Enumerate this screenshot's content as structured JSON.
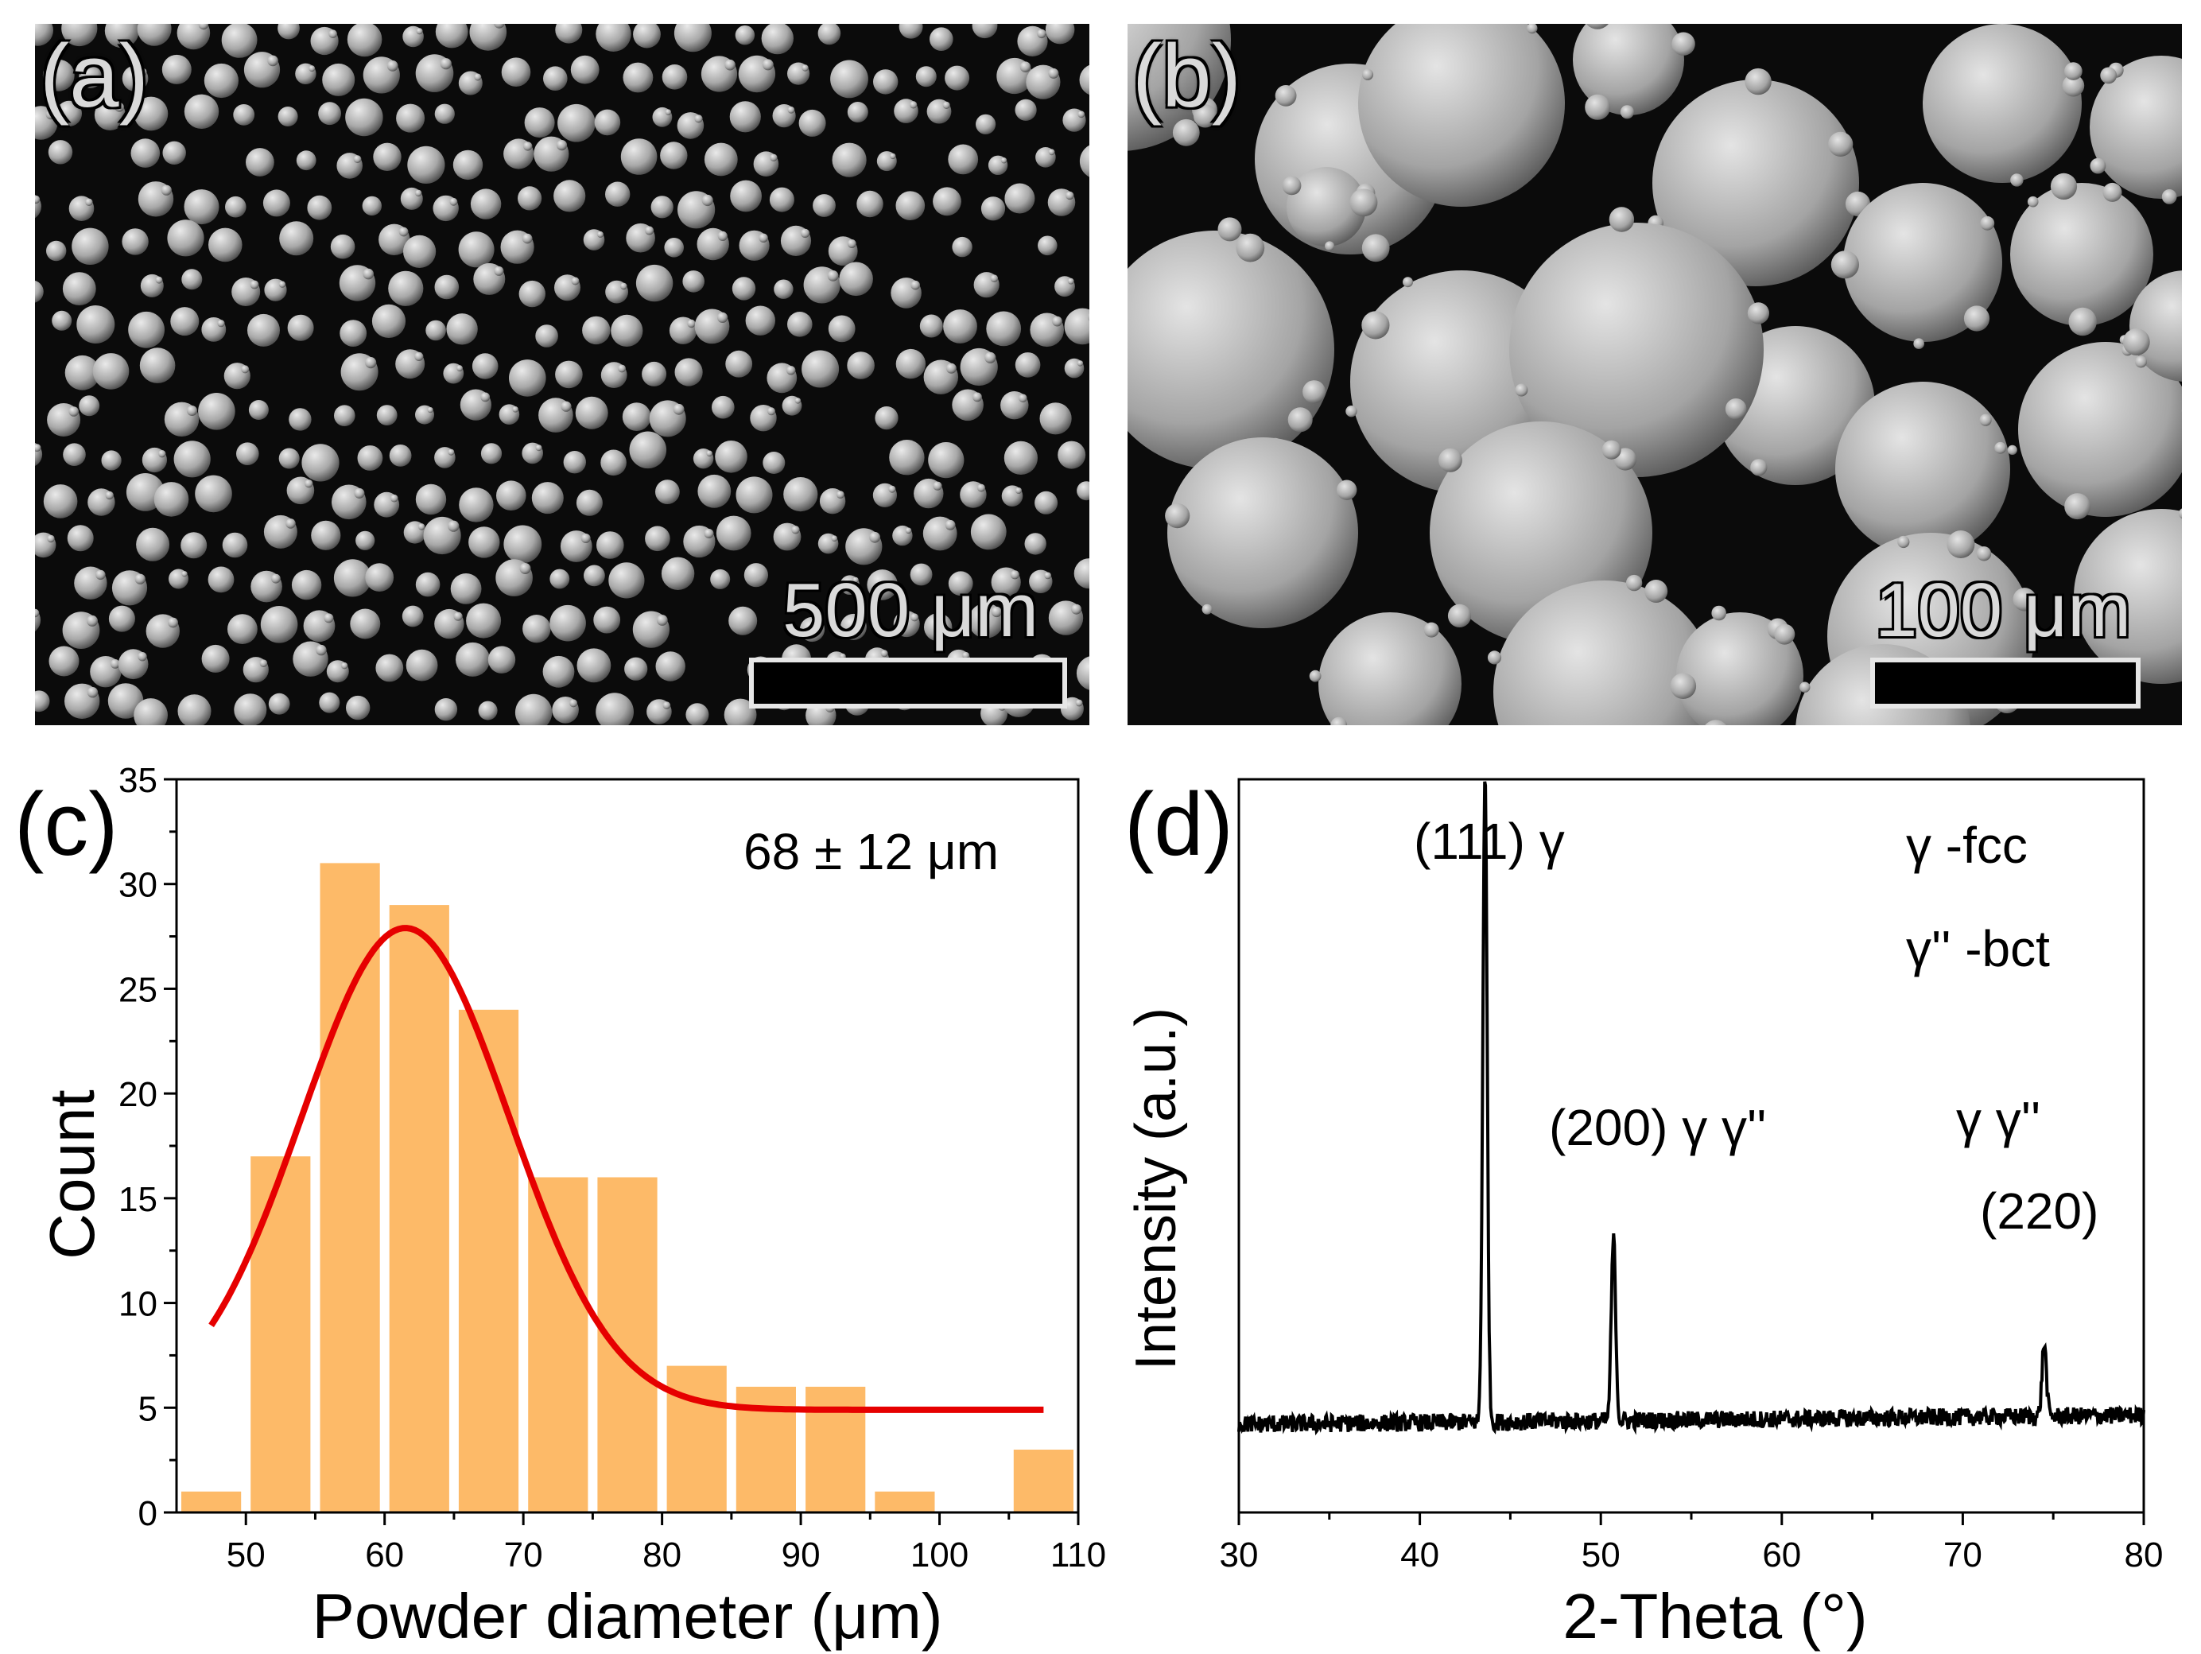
{
  "figure": {
    "panel_a": {
      "label": "(a)",
      "scale_bar": "500 μm"
    },
    "panel_b": {
      "label": "(b)",
      "scale_bar": "100 μm"
    },
    "panel_c": {
      "label": "(c)",
      "annotation": "68 ± 12 μm"
    },
    "panel_d": {
      "label": "(d)",
      "legend": [
        "γ -fcc",
        "γ'' -bct"
      ],
      "peak_labels": [
        "(111) γ",
        "(200) γ γ''",
        "γ γ''",
        "(220)"
      ]
    }
  },
  "chart_data": [
    {
      "type": "bar",
      "panel": "(c)",
      "xlabel": "Powder diameter (μm)",
      "ylabel": "Count",
      "xlim": [
        45,
        110
      ],
      "ylim": [
        0,
        35
      ],
      "xticks": [
        50,
        60,
        70,
        80,
        90,
        100,
        110
      ],
      "yticks": [
        0,
        5,
        10,
        15,
        20,
        25,
        30,
        35
      ],
      "bin_width": 5,
      "bin_centers": [
        47.5,
        52.5,
        57.5,
        62.5,
        67.5,
        72.5,
        77.5,
        82.5,
        87.5,
        92.5,
        97.5,
        102.5,
        107.5
      ],
      "values": [
        1,
        17,
        31,
        29,
        24,
        16,
        16,
        7,
        6,
        6,
        1,
        0,
        3
      ],
      "bar_color": "#fdba68",
      "fit": {
        "type": "gaussian",
        "color": "#e60000",
        "y0": 4.9,
        "amplitude": 23,
        "center": 61.5,
        "sigma": 7.5,
        "x_range": [
          47.5,
          107.5
        ]
      },
      "grid": false
    },
    {
      "type": "line",
      "panel": "(d)",
      "xlabel": "2-Theta (°)",
      "ylabel": "Intensity (a.u.)",
      "xlim": [
        30,
        80
      ],
      "ylim": [
        0,
        100
      ],
      "xticks": [
        30,
        40,
        50,
        60,
        70,
        80
      ],
      "baseline": 12,
      "peaks": [
        {
          "x": 43.6,
          "height": 100
        },
        {
          "x": 50.7,
          "height": 37
        },
        {
          "x": 74.5,
          "height": 22
        }
      ],
      "line_color": "#000000",
      "grid": false
    }
  ]
}
